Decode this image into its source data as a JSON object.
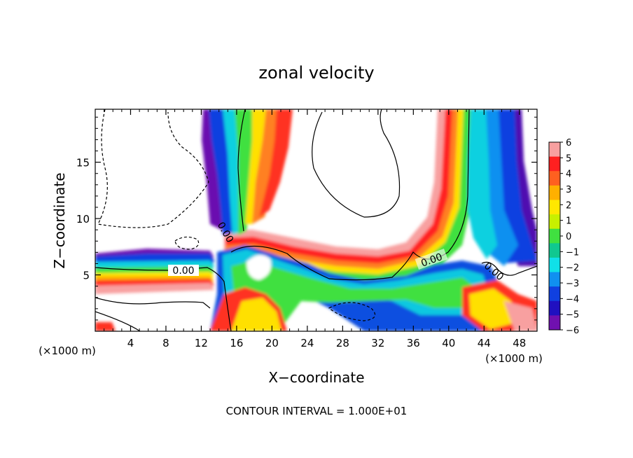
{
  "chart_data": {
    "type": "heatmap",
    "title": "zonal velocity",
    "xlabel": "X−coordinate",
    "ylabel": "Z−coordinate",
    "x_unit_left": "(×1000 m)",
    "x_unit_right": "(×1000 m)",
    "footer": "CONTOUR INTERVAL = 1.000E+01",
    "xlim": [
      0,
      50
    ],
    "ylim": [
      0,
      19.7
    ],
    "x_ticks": [
      4,
      8,
      12,
      16,
      20,
      24,
      28,
      32,
      36,
      40,
      44,
      48
    ],
    "y_ticks": [
      5,
      10,
      15
    ],
    "colorbar": {
      "range": [
        -6,
        6
      ],
      "levels": [
        "6",
        "5",
        "4",
        "3",
        "2",
        "1",
        "0",
        "−1",
        "−2",
        "−3",
        "−4",
        "−5",
        "−6"
      ],
      "colors": [
        "#f8a0a0",
        "#ff2020",
        "#ff6020",
        "#ffb000",
        "#ffe800",
        "#c8f000",
        "#40e040",
        "#10c890",
        "#10e0e8",
        "#1090f0",
        "#1040e0",
        "#2010c0",
        "#7010b0"
      ]
    },
    "contour_labels": [
      "0.00",
      "0.00",
      "0.00",
      "0.00"
    ]
  }
}
